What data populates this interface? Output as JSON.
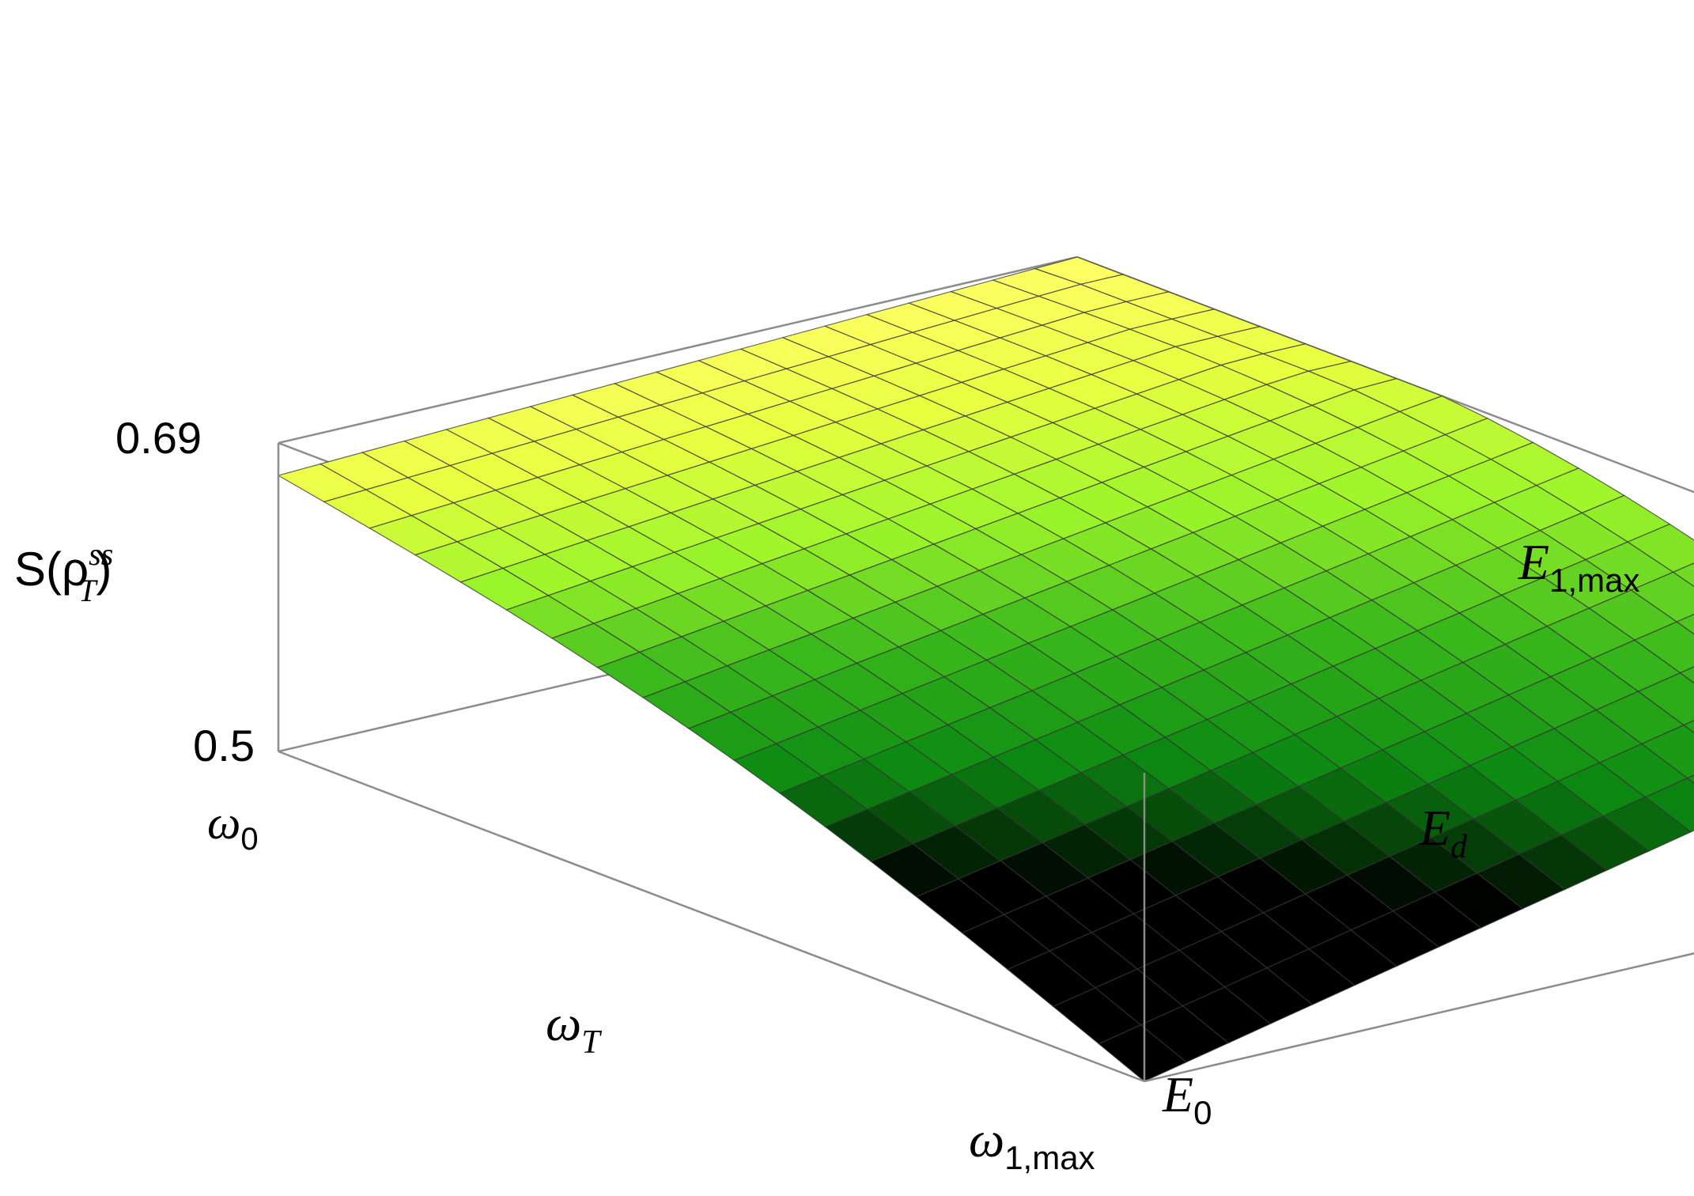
{
  "chart_data": {
    "type": "surface3d",
    "title": "",
    "z_axis": {
      "label_base": "S(ρ",
      "label_sub": "T",
      "label_sup": "ss",
      "label_close": ")",
      "ticks": [
        "0.69",
        "0.5"
      ],
      "range": [
        0.5,
        0.69
      ]
    },
    "x_axis": {
      "label_base": "ω",
      "label_sub": "T",
      "start_base": "ω",
      "start_sub": "0",
      "end_base": "ω",
      "end_sub": "1,max",
      "range": [
        0,
        1
      ]
    },
    "y_axis": {
      "label_base": "E",
      "label_sub": "d",
      "start_base": "E",
      "start_sub": "0",
      "end_base": "E",
      "end_sub": "1,max",
      "range": [
        0,
        1
      ]
    },
    "surface": {
      "description": "S decreases from about 0.69 at (ω0, E1,max side) toward lower values at (ω1,max, E0)",
      "corner_values": {
        "w0_E0": 0.67,
        "w0_Emax": 0.69,
        "wmax_E0": 0.5,
        "wmax_Emax": 0.61
      },
      "mesh_lines": 19,
      "colors": [
        "#ffff66",
        "#e8ff40",
        "#9cf52a",
        "#39b81c",
        "#0c8a12",
        "#000000"
      ]
    },
    "box_color": "#8c8c8c"
  }
}
